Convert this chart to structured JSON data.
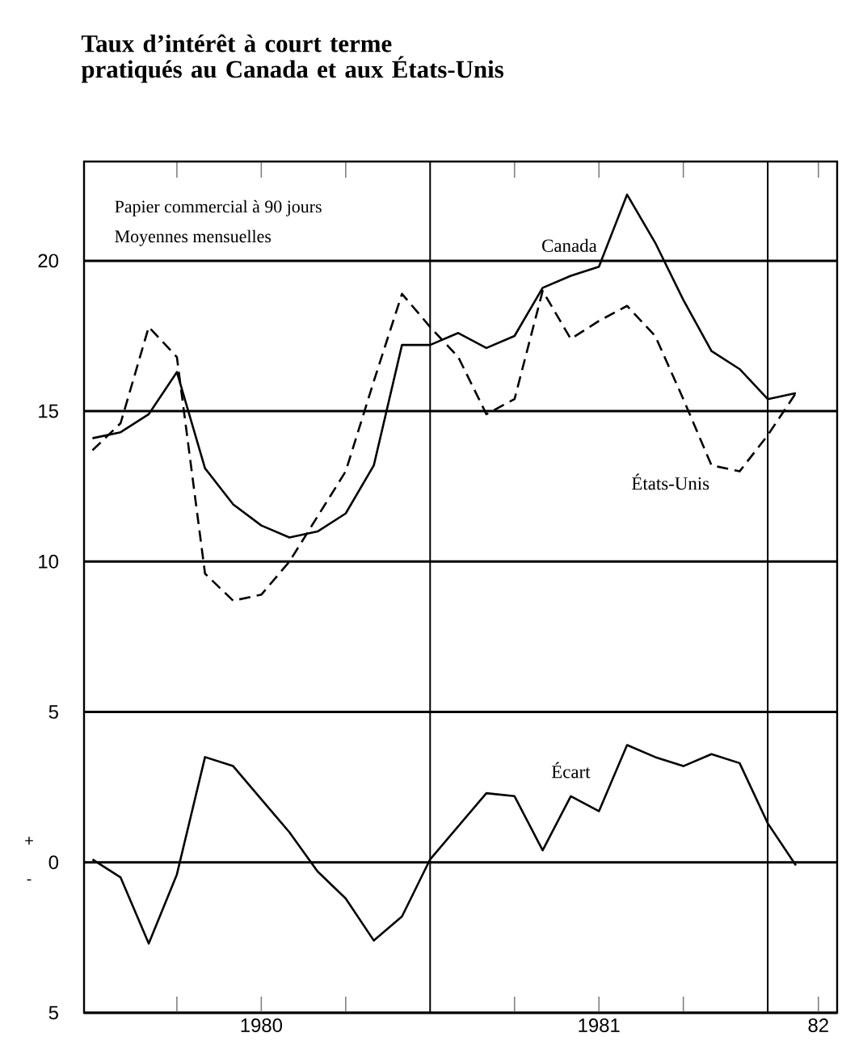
{
  "chart_data": {
    "type": "line",
    "title": "Taux d’intérêt à court terme\npratiqués au Canada et aux États-Unis",
    "annotations": [
      "Papier commercial à 90 jours",
      "Moyennes mensuelles",
      "+",
      "-"
    ],
    "x": [
      "1980-01",
      "1980-02",
      "1980-03",
      "1980-04",
      "1980-05",
      "1980-06",
      "1980-07",
      "1980-08",
      "1980-09",
      "1980-10",
      "1980-11",
      "1980-12",
      "1981-01",
      "1981-02",
      "1981-03",
      "1981-04",
      "1981-05",
      "1981-06",
      "1981-07",
      "1981-08",
      "1981-09",
      "1981-10",
      "1981-11",
      "1981-12",
      "1982-01",
      "1982-02"
    ],
    "series": [
      {
        "name": "Canada",
        "color": "#000000",
        "line_style": "solid",
        "values": [
          14.1,
          14.3,
          14.9,
          16.3,
          13.1,
          11.9,
          11.2,
          10.8,
          11.0,
          11.6,
          13.2,
          17.2,
          17.2,
          17.6,
          17.1,
          17.5,
          19.1,
          19.5,
          19.8,
          22.2,
          20.6,
          18.7,
          17.0,
          16.4,
          15.4,
          15.6
        ]
      },
      {
        "name": "États-Unis",
        "color": "#000000",
        "line_style": "dashed",
        "values": [
          13.7,
          14.6,
          17.8,
          16.8,
          9.6,
          8.7,
          8.9,
          10.0,
          11.5,
          13.0,
          16.0,
          18.9,
          17.8,
          16.8,
          14.9,
          15.4,
          19.0,
          17.4,
          18.0,
          18.5,
          17.5,
          15.4,
          13.2,
          13.0,
          14.2,
          15.6
        ]
      },
      {
        "name": "Écart",
        "color": "#000000",
        "line_style": "solid",
        "values": [
          0.1,
          -0.5,
          -2.7,
          -0.4,
          3.5,
          3.2,
          2.1,
          1.0,
          -0.3,
          -1.2,
          -2.6,
          -1.8,
          0.1,
          1.2,
          2.3,
          2.2,
          0.4,
          2.2,
          1.7,
          3.9,
          3.5,
          3.2,
          3.6,
          3.3,
          1.3,
          -0.1
        ]
      }
    ],
    "xlim": [
      "1979-12-22",
      "1982-03-15"
    ],
    "xticks": [
      {
        "value": "1980-04",
        "label": null
      },
      {
        "value": "1980-07",
        "label": "1980"
      },
      {
        "value": "1980-10",
        "label": null
      },
      {
        "value": "1981-04",
        "label": null
      },
      {
        "value": "1981-07",
        "label": "1981"
      },
      {
        "value": "1981-10",
        "label": null
      },
      {
        "value": "1982-02-25",
        "label": "82"
      }
    ],
    "ylim": [
      -5,
      23.3
    ],
    "yticks": [
      20,
      15,
      10,
      5,
      {
        "value": 0,
        "label": "0"
      },
      {
        "value": -5,
        "label": "5"
      }
    ],
    "grid": "y",
    "ref_lines": [
      {
        "axis": "x",
        "value": "1981-01"
      },
      {
        "axis": "x",
        "value": "1982-01"
      }
    ]
  }
}
